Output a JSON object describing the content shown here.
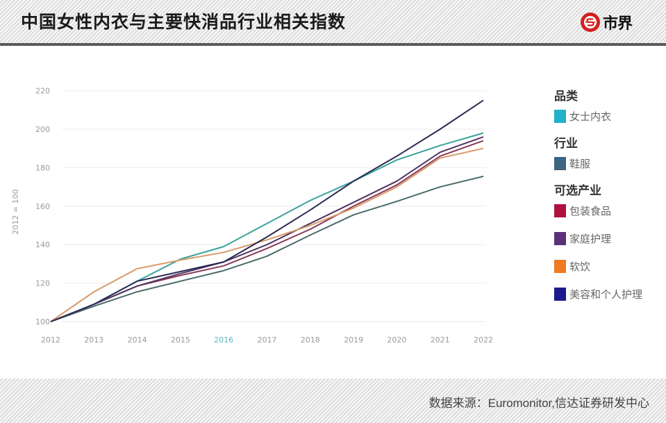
{
  "header": {
    "title": "中国女性内衣与主要快消品行业相关指数",
    "logo_text": "市界",
    "logo_icon": "s-circle-logo-icon"
  },
  "footer": {
    "source": "数据来源：Euromonitor,信达证券研发中心"
  },
  "legend": {
    "groups": [
      {
        "title": "品类",
        "items": [
          {
            "label": "女士内衣",
            "color": "#22b1c8"
          }
        ]
      },
      {
        "title": "行业",
        "items": [
          {
            "label": "鞋服",
            "color": "#3d6481"
          }
        ]
      },
      {
        "title": "可选产业",
        "items": [
          {
            "label": "包装食品",
            "color": "#b0103f"
          },
          {
            "label": "家庭护理",
            "color": "#5c2f7a"
          },
          {
            "label": "软饮",
            "color": "#ef7a22"
          },
          {
            "label": "美容和个人护理",
            "color": "#1f1a8c"
          }
        ]
      }
    ]
  },
  "chart_data": {
    "type": "line",
    "title": "中国女性内衣与主要快消品行业相关指数",
    "xlabel": "",
    "ylabel": "2012 = 100",
    "x": [
      "2012",
      "2013",
      "2014",
      "2015",
      "2016",
      "2017",
      "2018",
      "2019",
      "2020",
      "2021",
      "2022"
    ],
    "highlight_x": "2016",
    "yticks": [
      100,
      120,
      140,
      160,
      180,
      200,
      220
    ],
    "ylim": [
      100,
      220
    ],
    "grid": true,
    "legend_position": "right",
    "series": [
      {
        "name": "女士内衣",
        "group": "品类",
        "color": "#22b1c8",
        "line_color": "#3aa39a",
        "values": [
          100,
          109,
          121,
          132.5,
          139,
          151,
          163,
          173,
          184,
          191.5,
          198
        ]
      },
      {
        "name": "鞋服",
        "group": "行业",
        "color": "#3d6481",
        "line_color": "#4a6a6a",
        "values": [
          100,
          108,
          115.5,
          121,
          126.5,
          134,
          145,
          155.5,
          162.5,
          170,
          175.5
        ]
      },
      {
        "name": "包装食品",
        "group": "可选产业",
        "color": "#b0103f",
        "line_color": "#8a3a55",
        "values": [
          100,
          109,
          118.5,
          124,
          129,
          138,
          148,
          160,
          171,
          186,
          194
        ]
      },
      {
        "name": "家庭护理",
        "group": "可选产业",
        "color": "#5c2f7a",
        "line_color": "#4f3560",
        "values": [
          100,
          109,
          118.5,
          125,
          131,
          140,
          151,
          162,
          173,
          188,
          196
        ]
      },
      {
        "name": "软饮",
        "group": "可选产业",
        "color": "#ef7a22",
        "line_color": "#d99a6a",
        "values": [
          100,
          115.5,
          127.5,
          132,
          136,
          142.5,
          150,
          159,
          170,
          185,
          190
        ]
      },
      {
        "name": "美容和个人护理",
        "group": "可选产业",
        "color": "#1f1a8c",
        "line_color": "#2a2a55",
        "values": [
          100,
          109,
          121,
          126,
          131,
          144,
          158,
          173,
          186,
          200,
          215
        ]
      }
    ]
  }
}
